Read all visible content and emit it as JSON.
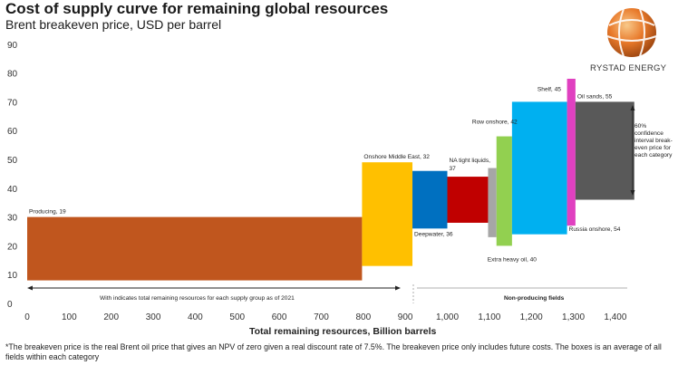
{
  "header": {
    "title": "Cost of supply curve for remaining global resources",
    "subtitle": "Brent breakeven price, USD per barrel"
  },
  "logo": {
    "icon": "rystad-globe-icon",
    "text": "RYSTAD ENERGY"
  },
  "annotations": {
    "producing_note": "With indicates total remaining resources for each supply group as of 2021",
    "non_producing": "Non-producing fields",
    "ci_lines": [
      "60%",
      "confidence",
      "interval break-",
      "even price for",
      "each category"
    ]
  },
  "footnote": "*The breakeven price is the real Brent oil price that gives an NPV of zero given a real discount rate of 7.5%. The breakeven price only includes future costs. The boxes is an average of all fields within each category",
  "chart_data": {
    "type": "bar",
    "title": "Cost of supply curve for remaining global resources",
    "subtitle": "Brent breakeven price, USD per barrel",
    "xlabel_bold": "Total remaining resources,",
    "xlabel_rest": " Billion barrels",
    "xlim": [
      0,
      1400
    ],
    "ylim": [
      0,
      90
    ],
    "xticks": [
      0,
      100,
      200,
      300,
      400,
      500,
      600,
      700,
      800,
      900,
      1000,
      1100,
      1200,
      1300,
      1400
    ],
    "xtick_labels": [
      "0",
      "100",
      "200",
      "300",
      "400",
      "500",
      "600",
      "700",
      "800",
      "900",
      "1,000",
      "1,100",
      "1,200",
      "1,300",
      "1,400"
    ],
    "yticks": [
      0,
      10,
      20,
      30,
      40,
      50,
      60,
      70,
      80,
      90
    ],
    "grid": false,
    "boxes": [
      {
        "label": "Producing, 19",
        "x0": 0,
        "x1": 797,
        "low": 8,
        "high": 30,
        "color": "#c0561e",
        "label_pos": "above-left"
      },
      {
        "label": "Onshore Middle East, 32",
        "x0": 797,
        "x1": 917,
        "low": 13,
        "high": 49,
        "color": "#ffc000",
        "label_pos": "above-left"
      },
      {
        "label": "Deepwater, 36",
        "x0": 917,
        "x1": 1000,
        "low": 26,
        "high": 46,
        "color": "#0070c0",
        "label_pos": "below-left"
      },
      {
        "label": "NA tight liquids, 37",
        "x0": 1000,
        "x1": 1097,
        "low": 28,
        "high": 44,
        "color": "#c00000",
        "label_pos": "above-left"
      },
      {
        "label": "",
        "x0": 1097,
        "x1": 1117,
        "low": 23,
        "high": 47,
        "color": "#a6a6a6",
        "label_pos": "none"
      },
      {
        "label": "Extra heavy oil, 40",
        "x0": 1117,
        "x1": 1154,
        "low": 20,
        "high": 58,
        "color": "#92d050",
        "label_pos": "below"
      },
      {
        "label": "Row onshore, 42",
        "x0": 1154,
        "x1": 1154,
        "low": 58,
        "high": 58,
        "color": "#92d050",
        "label_pos": "above-only"
      },
      {
        "label": "Shelf, 45",
        "x0": 1154,
        "x1": 1285,
        "low": 24,
        "high": 70,
        "color": "#00b0f0",
        "label_pos": "above"
      },
      {
        "label": "Russia onshore, 54",
        "x0": 1285,
        "x1": 1305,
        "low": 27,
        "high": 78,
        "color": "#e040c0",
        "label_pos": "below"
      },
      {
        "label": "Oil sands, 55",
        "x0": 1305,
        "x1": 1445,
        "low": 36,
        "high": 70,
        "color": "#595959",
        "label_pos": "above-left"
      }
    ]
  }
}
